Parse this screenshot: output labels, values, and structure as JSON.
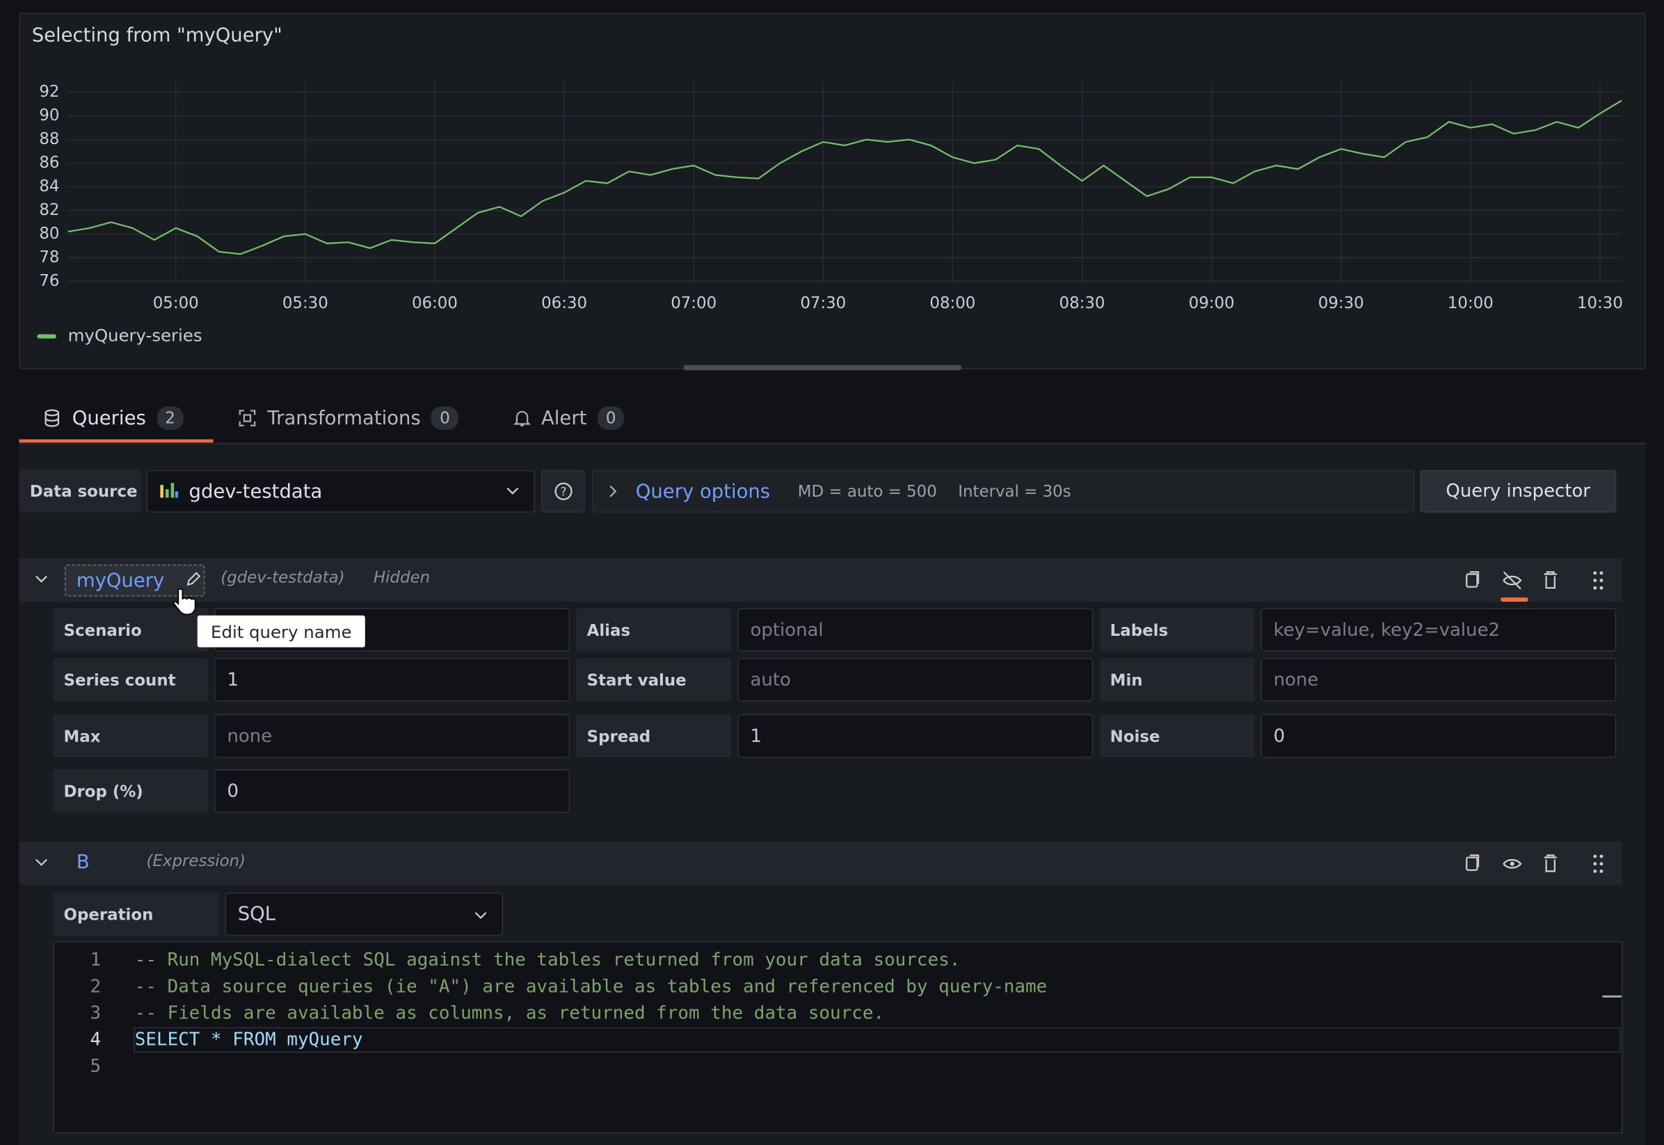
{
  "chart_data": {
    "type": "line",
    "title": "Selecting from \"myQuery\"",
    "x": [
      "04:35",
      "04:40",
      "04:45",
      "04:50",
      "04:55",
      "05:00",
      "05:05",
      "05:10",
      "05:15",
      "05:20",
      "05:25",
      "05:30",
      "05:35",
      "05:40",
      "05:45",
      "05:50",
      "05:55",
      "06:00",
      "06:05",
      "06:10",
      "06:15",
      "06:20",
      "06:25",
      "06:30",
      "06:35",
      "06:40",
      "06:45",
      "06:50",
      "06:55",
      "07:00",
      "07:05",
      "07:10",
      "07:15",
      "07:20",
      "07:25",
      "07:30",
      "07:35",
      "07:40",
      "07:45",
      "07:50",
      "07:55",
      "08:00",
      "08:05",
      "08:10",
      "08:15",
      "08:20",
      "08:25",
      "08:30",
      "08:35",
      "08:40",
      "08:45",
      "08:50",
      "08:55",
      "09:00",
      "09:05",
      "09:10",
      "09:15",
      "09:20",
      "09:25",
      "09:30",
      "09:35",
      "09:40",
      "09:45",
      "09:50",
      "09:55",
      "10:00",
      "10:05",
      "10:10",
      "10:15",
      "10:20",
      "10:25",
      "10:30",
      "10:35"
    ],
    "series": [
      {
        "name": "myQuery-series",
        "color": "#73bf69",
        "values": [
          80.2,
          80.5,
          81,
          80.5,
          79.5,
          80.5,
          79.8,
          78.5,
          78.3,
          79,
          79.8,
          80,
          79.2,
          79.3,
          78.8,
          79.5,
          79.3,
          79.2,
          80.5,
          81.8,
          82.3,
          81.5,
          82.8,
          83.5,
          84.5,
          84.3,
          85.3,
          85,
          85.5,
          85.8,
          85,
          84.8,
          84.7,
          86,
          87,
          87.8,
          87.5,
          88,
          87.8,
          88,
          87.5,
          86.5,
          86,
          86.3,
          87.5,
          87.2,
          85.8,
          84.5,
          85.8,
          84.5,
          83.2,
          83.8,
          84.8,
          84.8,
          84.3,
          85.3,
          85.8,
          85.5,
          86.5,
          87.2,
          86.8,
          86.5,
          87.8,
          88.2,
          89.5,
          89,
          89.3,
          88.5,
          88.8,
          89.5,
          89,
          90.2,
          91.3
        ]
      }
    ],
    "xlim": [
      "04:35",
      "10:35"
    ],
    "xticks": [
      "05:00",
      "05:30",
      "06:00",
      "06:30",
      "07:00",
      "07:30",
      "08:00",
      "08:30",
      "09:00",
      "09:30",
      "10:00",
      "10:30"
    ],
    "ylim": [
      76,
      92
    ],
    "yticks": [
      76,
      78,
      80,
      82,
      84,
      86,
      88,
      90,
      92
    ],
    "grid": true,
    "legend": "bottom-left"
  },
  "tabs": [
    {
      "label": "Queries",
      "count": 2
    },
    {
      "label": "Transformations",
      "count": 0
    },
    {
      "label": "Alert",
      "count": 0
    }
  ],
  "toolbar": {
    "data_source_label": "Data source",
    "data_source": "gdev-testdata",
    "query_options": "Query options",
    "max_data_points": "MD = auto = 500",
    "interval": "Interval = 30s",
    "query_inspector": "Query inspector"
  },
  "queries": [
    {
      "name": "myQuery",
      "datasource": "(gdev-testdata)",
      "status": "Hidden",
      "tooltip": "Edit query name",
      "fields": [
        {
          "label": "Scenario"
        },
        {
          "label": "Alias",
          "placeholder": "optional"
        },
        {
          "label": "Labels",
          "placeholder": "key=value, key2=value2"
        },
        {
          "label": "Series count",
          "value": 1
        },
        {
          "label": "Start value",
          "placeholder": "auto"
        },
        {
          "label": "Min",
          "placeholder": "none"
        },
        {
          "label": "Max",
          "placeholder": "none"
        },
        {
          "label": "Spread",
          "value": 1
        },
        {
          "label": "Noise",
          "value": 0
        },
        {
          "label": "Drop (%)",
          "value": 0
        }
      ]
    },
    {
      "name": "B",
      "datasource": "(Expression)",
      "operation_label": "Operation",
      "operation": "SQL",
      "line_numbers": [
        1,
        2,
        3,
        4,
        5
      ],
      "code": [
        "-- Run MySQL-dialect SQL against the tables returned from your data sources.",
        "-- Data source queries (ie \"A\") are available as tables and referenced by query-name",
        "-- Fields are available as columns, as returned from the data source.",
        "SELECT * FROM myQuery"
      ]
    }
  ]
}
